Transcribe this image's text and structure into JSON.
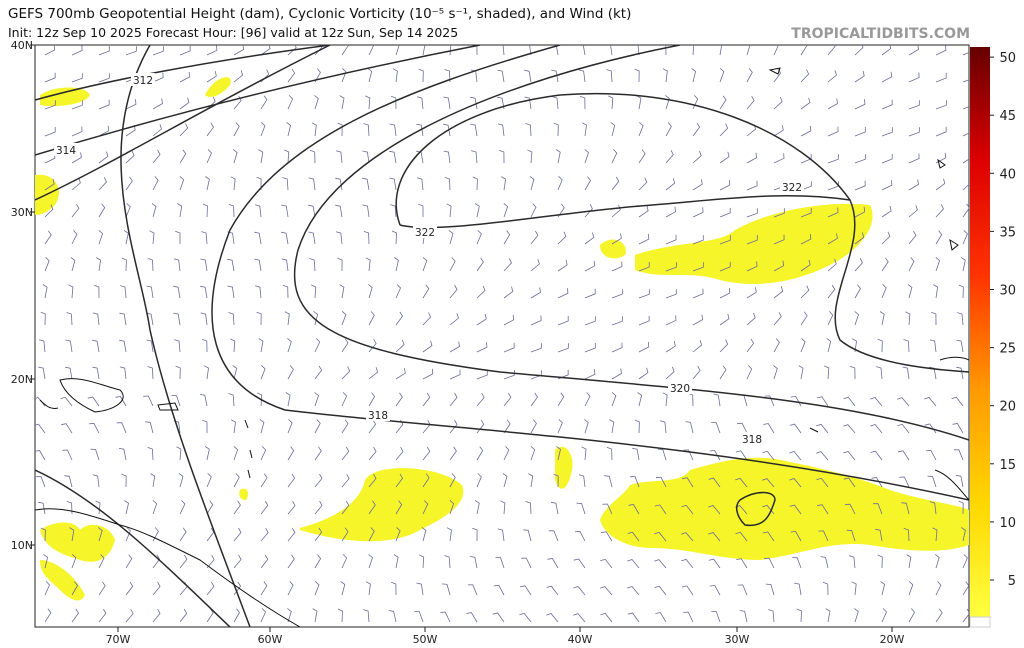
{
  "header": {
    "title": "GEFS 700mb Geopotential Height (dam), Cyclonic Vorticity (10⁻⁵ s⁻¹, shaded), and Wind (kt)",
    "subtitle": "Init: 12z Sep 10 2025   Forecast Hour: [96]   valid at 12z Sun, Sep 14 2025",
    "source": "TROPICALTIDBITS.COM"
  },
  "map": {
    "lat_labels": [
      "40N",
      "30N",
      "20N",
      "10N"
    ],
    "lon_labels": [
      "70W",
      "60W",
      "50W",
      "40W",
      "30W",
      "20W"
    ],
    "contour_labels": [
      "312",
      "314",
      "322",
      "322",
      "320",
      "318",
      "318"
    ]
  },
  "colorbar": {
    "ticks": [
      5,
      10,
      15,
      20,
      25,
      30,
      35,
      40,
      45,
      50
    ]
  }
}
